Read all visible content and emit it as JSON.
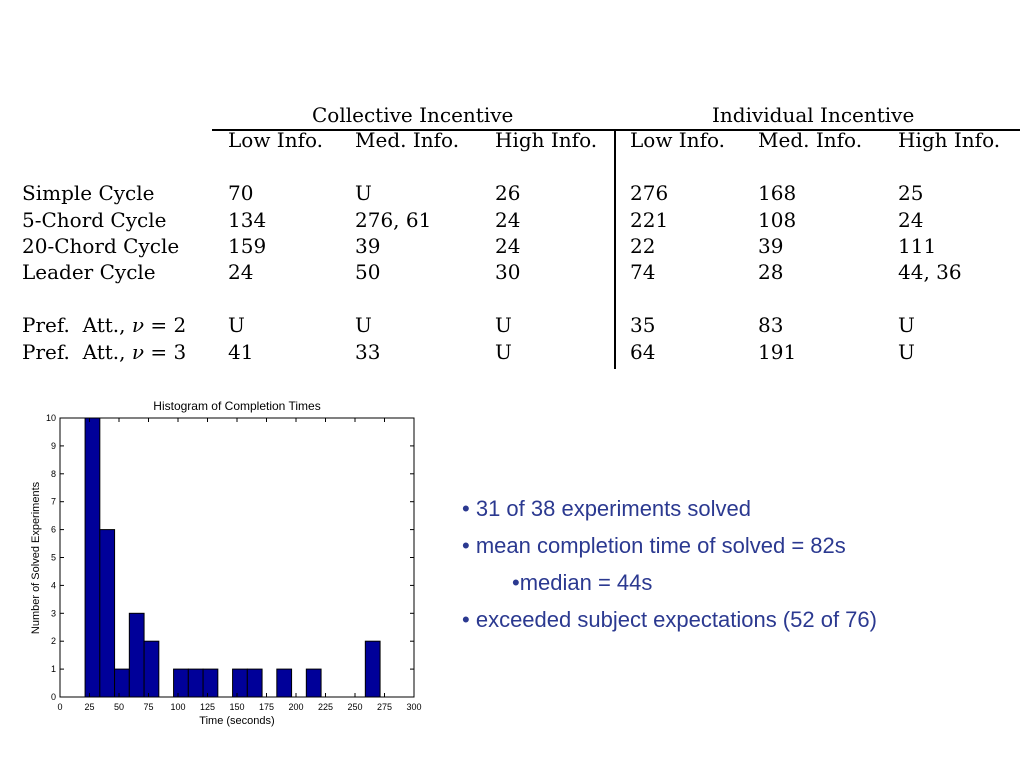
{
  "table": {
    "group_headers": [
      "Collective Incentive",
      "Individual Incentive"
    ],
    "column_headers": [
      "Low Info.",
      "Med. Info.",
      "High Info.",
      "Low Info.",
      "Med. Info.",
      "High Info."
    ],
    "rows": [
      {
        "label": "Simple Cycle",
        "values": [
          "70",
          "U",
          "26",
          "276",
          "168",
          "25"
        ]
      },
      {
        "label": "5-Chord Cycle",
        "values": [
          "134",
          "276, 61",
          "24",
          "221",
          "108",
          "24"
        ]
      },
      {
        "label": "20-Chord Cycle",
        "values": [
          "159",
          "39",
          "24",
          "22",
          "39",
          "111"
        ]
      },
      {
        "label": "Leader Cycle",
        "values": [
          "24",
          "50",
          "30",
          "74",
          "28",
          "44, 36"
        ]
      },
      {
        "label_prefix": "Pref.  Att., ",
        "label_symbol": "ν",
        "label_suffix": " = 2",
        "values": [
          "U",
          "U",
          "U",
          "35",
          "83",
          "U"
        ]
      },
      {
        "label_prefix": "Pref.  Att., ",
        "label_symbol": "ν",
        "label_suffix": " = 3",
        "values": [
          "41",
          "33",
          "U",
          "64",
          "191",
          "U"
        ]
      }
    ]
  },
  "chart_data": {
    "type": "bar",
    "title": "Histogram of Completion Times",
    "xlabel": "Time (seconds)",
    "ylabel": "Number of Solved Experiments",
    "xlim": [
      0,
      300
    ],
    "ylim": [
      0,
      10
    ],
    "x_ticks": [
      0,
      25,
      50,
      75,
      100,
      125,
      150,
      175,
      200,
      225,
      250,
      275,
      300
    ],
    "y_ticks": [
      0,
      1,
      2,
      3,
      4,
      5,
      6,
      7,
      8,
      9,
      10
    ],
    "bin_width": 12.5,
    "bins": [
      {
        "start": 21.25,
        "count": 10
      },
      {
        "start": 33.75,
        "count": 6
      },
      {
        "start": 46.25,
        "count": 1
      },
      {
        "start": 58.75,
        "count": 3
      },
      {
        "start": 71.25,
        "count": 2
      },
      {
        "start": 96.25,
        "count": 1
      },
      {
        "start": 108.75,
        "count": 1
      },
      {
        "start": 121.25,
        "count": 1
      },
      {
        "start": 146.25,
        "count": 1
      },
      {
        "start": 158.75,
        "count": 1
      },
      {
        "start": 183.75,
        "count": 1
      },
      {
        "start": 208.75,
        "count": 1
      },
      {
        "start": 258.75,
        "count": 2
      }
    ],
    "bar_color": "#000099",
    "bar_edge_color": "#000000",
    "grid": false
  },
  "bullets": {
    "items": [
      {
        "marker": "• ",
        "text": "31 of 38 experiments solved"
      },
      {
        "marker": "• ",
        "text": "mean completion time of solved = 82s"
      },
      {
        "marker": "•",
        "text": "median = 44s"
      },
      {
        "marker": "• ",
        "text": "exceeded subject expectations (52 of 76)"
      }
    ],
    "color": "#2b3990"
  }
}
